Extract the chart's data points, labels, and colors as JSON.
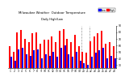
{
  "title": "Milwaukee Weather  Outdoor Temperature",
  "subtitle": "Daily High/Low",
  "bar_width": 0.42,
  "x_labels": [
    "1",
    "2",
    "3",
    "4",
    "5",
    "6",
    "7",
    "8",
    "9",
    "10",
    "11",
    "12",
    "13",
    "14",
    "15",
    "16",
    "17",
    "18",
    "19",
    "20",
    "21",
    "22",
    "23",
    "24",
    "25",
    "26",
    "27",
    "28"
  ],
  "highs": [
    58,
    50,
    80,
    84,
    70,
    65,
    78,
    80,
    62,
    68,
    68,
    74,
    65,
    82,
    85,
    70,
    65,
    76,
    58,
    50,
    48,
    66,
    74,
    78,
    82,
    62,
    65,
    58
  ],
  "lows": [
    42,
    36,
    54,
    56,
    46,
    44,
    52,
    54,
    40,
    46,
    44,
    50,
    42,
    56,
    60,
    46,
    42,
    50,
    36,
    32,
    30,
    42,
    48,
    52,
    56,
    40,
    44,
    40
  ],
  "high_color": "#ff0000",
  "low_color": "#0000ff",
  "bg_color": "#ffffff",
  "ylim": [
    25,
    90
  ],
  "yticks": [
    30,
    40,
    50,
    60,
    70,
    80,
    90
  ],
  "vline_positions": [
    18.5,
    20.5
  ],
  "legend_high": "High",
  "legend_low": "Low",
  "n_bars": 28
}
